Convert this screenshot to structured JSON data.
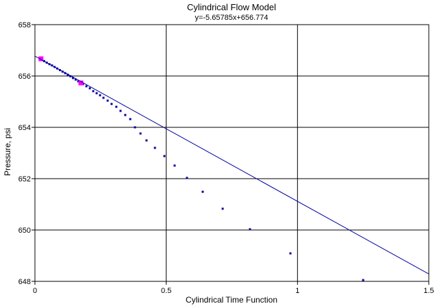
{
  "chart_data": {
    "type": "scatter",
    "title": "Cylindrical Flow Model",
    "subtitle": "y=-5.65785x+656.774",
    "x_label": "Cylindrical Time Function",
    "y_label": "Pressure, psi",
    "xlim": [
      0,
      1.5
    ],
    "ylim": [
      648,
      658
    ],
    "xticks": [
      0,
      0.5,
      1,
      1.5
    ],
    "yticks": [
      648,
      650,
      652,
      654,
      656,
      658
    ],
    "grid": true,
    "series": [
      {
        "color": "#0000a0",
        "marker": "point",
        "x": [
          0.035,
          0.045,
          0.055,
          0.065,
          0.075,
          0.085,
          0.095,
          0.105,
          0.115,
          0.125,
          0.135,
          0.145,
          0.155,
          0.165,
          0.183,
          0.196,
          0.209,
          0.222,
          0.235,
          0.248,
          0.261,
          0.277,
          0.292,
          0.31,
          0.326,
          0.344,
          0.363,
          0.381,
          0.402,
          0.425,
          0.457,
          0.493,
          0.532,
          0.579,
          0.639,
          0.715,
          0.819,
          0.973,
          1.25
        ],
        "values": [
          656.58,
          656.52,
          656.46,
          656.41,
          656.35,
          656.29,
          656.23,
          656.17,
          656.11,
          656.05,
          655.99,
          655.92,
          655.86,
          655.79,
          655.68,
          655.6,
          655.52,
          655.41,
          655.33,
          655.25,
          655.15,
          655.04,
          654.91,
          654.8,
          654.64,
          654.48,
          654.32,
          654.0,
          653.76,
          653.49,
          653.2,
          652.88,
          652.51,
          652.03,
          651.49,
          650.83,
          650.03,
          649.09,
          648.05
        ]
      },
      {
        "color": "#ff00ff",
        "marker": "square",
        "x": [
          0.023,
          0.175
        ],
        "values": [
          656.67,
          655.73
        ]
      },
      {
        "color": "#0000a0",
        "marker": "line",
        "x": [
          0,
          1.5
        ],
        "values": [
          656.774,
          648.287
        ]
      }
    ]
  }
}
